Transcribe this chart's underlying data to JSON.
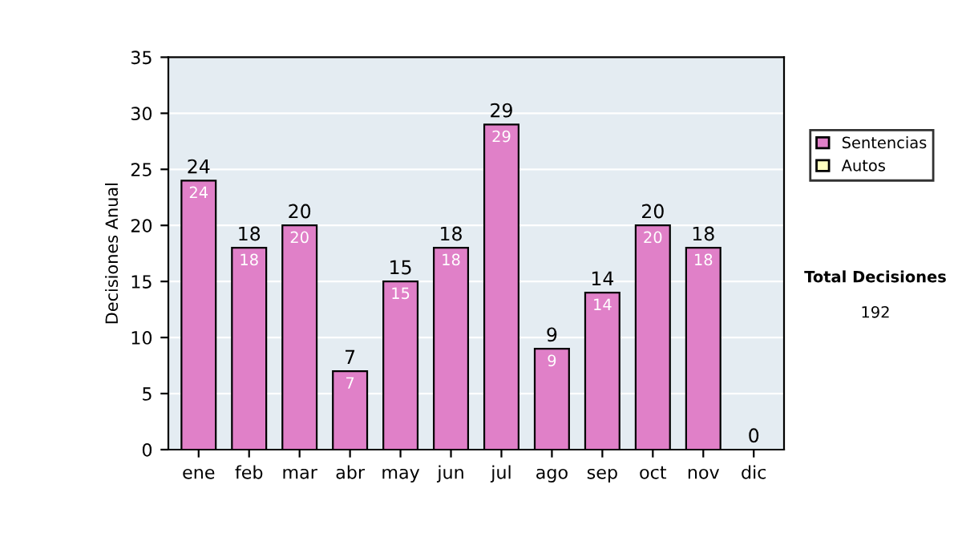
{
  "chart_data": {
    "type": "bar",
    "ylabel": "Decisiones Anual",
    "categories": [
      "ene",
      "feb",
      "mar",
      "abr",
      "may",
      "jun",
      "jul",
      "ago",
      "sep",
      "oct",
      "nov",
      "dic"
    ],
    "series": [
      {
        "name": "Sentencias",
        "color": "#e080c8",
        "values": [
          24,
          18,
          20,
          7,
          15,
          18,
          29,
          9,
          14,
          20,
          18,
          0
        ],
        "value_labels": [
          "24",
          "18",
          "20",
          "7",
          "15",
          "18",
          "29",
          "9",
          "14",
          "20",
          "18",
          null
        ]
      },
      {
        "name": "Autos",
        "color": "#ffffc0",
        "values": [
          0,
          0,
          0,
          0,
          0,
          0,
          0,
          0,
          0,
          0,
          0,
          0
        ]
      }
    ],
    "stacked": true,
    "totals": [
      "24",
      "18",
      "20",
      "7",
      "15",
      "18",
      "29",
      "9",
      "14",
      "20",
      "18",
      "0"
    ],
    "ylim": [
      0,
      35
    ],
    "yticks": [
      0,
      5,
      10,
      15,
      20,
      25,
      30,
      35
    ],
    "grid": "y",
    "legend": "right",
    "annotations": [
      "Total Decisiones",
      "192"
    ]
  }
}
